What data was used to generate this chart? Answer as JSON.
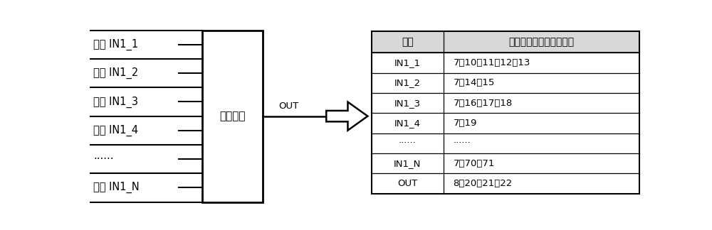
{
  "signals_left": [
    "信号 IN1_1",
    "信号 IN1_2",
    "信号 IN1_3",
    "信号 IN1_4",
    "······",
    "信号 IN1_N"
  ],
  "box_label": "待测模块",
  "out_label": "OUT",
  "table_header": [
    "信号",
    "测试控制寄存器的有效位"
  ],
  "table_rows": [
    [
      "IN1_1",
      "7，10，11，12，13"
    ],
    [
      "IN1_2",
      "7，14，15"
    ],
    [
      "IN1_3",
      "7，16，17，18"
    ],
    [
      "IN1_4",
      "7，19"
    ],
    [
      "······",
      "······"
    ],
    [
      "IN1_N",
      "7，70，71"
    ],
    [
      "OUT",
      "8，20，21，22"
    ]
  ],
  "bg_color": "#ffffff",
  "text_color": "#000000",
  "line_color": "#000000"
}
